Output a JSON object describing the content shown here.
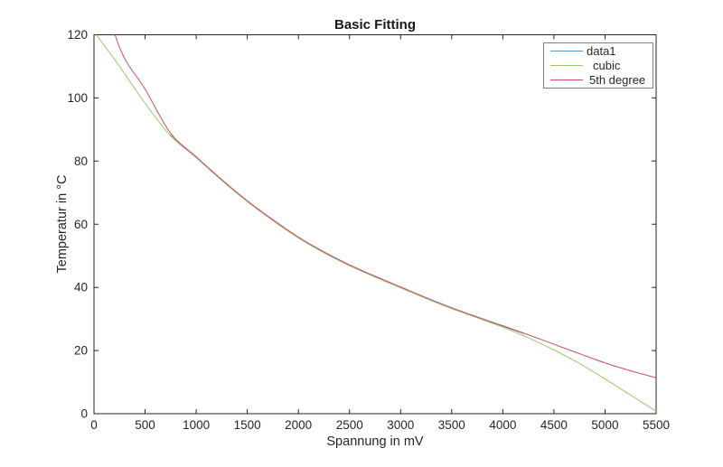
{
  "figure": {
    "background": "#ffffff",
    "axis_color": "#262626",
    "legend_border_color": "#808080"
  },
  "chart_data": {
    "type": "line",
    "title": "Basic Fitting",
    "xlabel": "Spannung in mV",
    "ylabel": "Temperatur in °C",
    "xlim": [
      0,
      5500
    ],
    "ylim": [
      0,
      120
    ],
    "grid": false,
    "legend_position": "northeast",
    "x_ticks": [
      0,
      500,
      1000,
      1500,
      2000,
      2500,
      3000,
      3500,
      4000,
      4500,
      5000,
      5500
    ],
    "x_tick_labels": [
      "0",
      "500",
      "1000",
      "1500",
      "2000",
      "2500",
      "3000",
      "3500",
      "4000",
      "4500",
      "5000",
      "5500"
    ],
    "y_ticks": [
      0,
      20,
      40,
      60,
      80,
      100,
      120
    ],
    "y_tick_labels": [
      "0",
      "20",
      "40",
      "60",
      "80",
      "100",
      "120"
    ],
    "series": [
      {
        "name": "data1",
        "color": "#4D99CC",
        "x": [
          750,
          1000,
          1250,
          1500,
          1750,
          2000,
          2250,
          2500,
          2750,
          3000,
          3250,
          3500,
          3750,
          4000,
          4200
        ],
        "y": [
          88.2,
          81.2,
          74.0,
          67.3,
          61.3,
          55.8,
          51.1,
          47.0,
          43.4,
          40.0,
          36.6,
          33.4,
          30.5,
          27.7,
          25.4
        ]
      },
      {
        "name": "cubic",
        "color": "#99CC66",
        "x": [
          0,
          250,
          500,
          750,
          1000,
          1250,
          1500,
          1750,
          2000,
          2250,
          2500,
          2750,
          3000,
          3250,
          3500,
          3750,
          4000,
          4250,
          4500,
          4750,
          5000,
          5250,
          5500
        ],
        "y": [
          121.0,
          110.0,
          98.3,
          88.0,
          81.05,
          73.85,
          67.15,
          61.15,
          55.65,
          50.95,
          46.85,
          43.25,
          39.85,
          36.45,
          33.25,
          30.35,
          27.4,
          24.0,
          20.2,
          15.9,
          11.0,
          5.9,
          0.8
        ]
      },
      {
        "name": "5th degree",
        "color": "#CC4D66",
        "x": [
          0,
          250,
          500,
          750,
          1000,
          1250,
          1500,
          1750,
          2000,
          2250,
          2500,
          2750,
          3000,
          3250,
          3500,
          3750,
          4000,
          4250,
          4500,
          4750,
          5000,
          5250,
          5500
        ],
        "y": [
          143.0,
          116.0,
          102.8,
          88.8,
          81.35,
          74.15,
          67.45,
          61.45,
          55.95,
          51.25,
          47.15,
          43.55,
          40.15,
          36.75,
          33.55,
          30.65,
          27.85,
          25.0,
          22.0,
          19.0,
          16.1,
          13.6,
          11.4
        ]
      }
    ]
  },
  "legend": {
    "items": [
      {
        "label": "data1",
        "color": "#4D99CC"
      },
      {
        "label": "cubic",
        "color": "#99CC66"
      },
      {
        "label": "5th degree",
        "color": "#CC4D66"
      }
    ]
  }
}
